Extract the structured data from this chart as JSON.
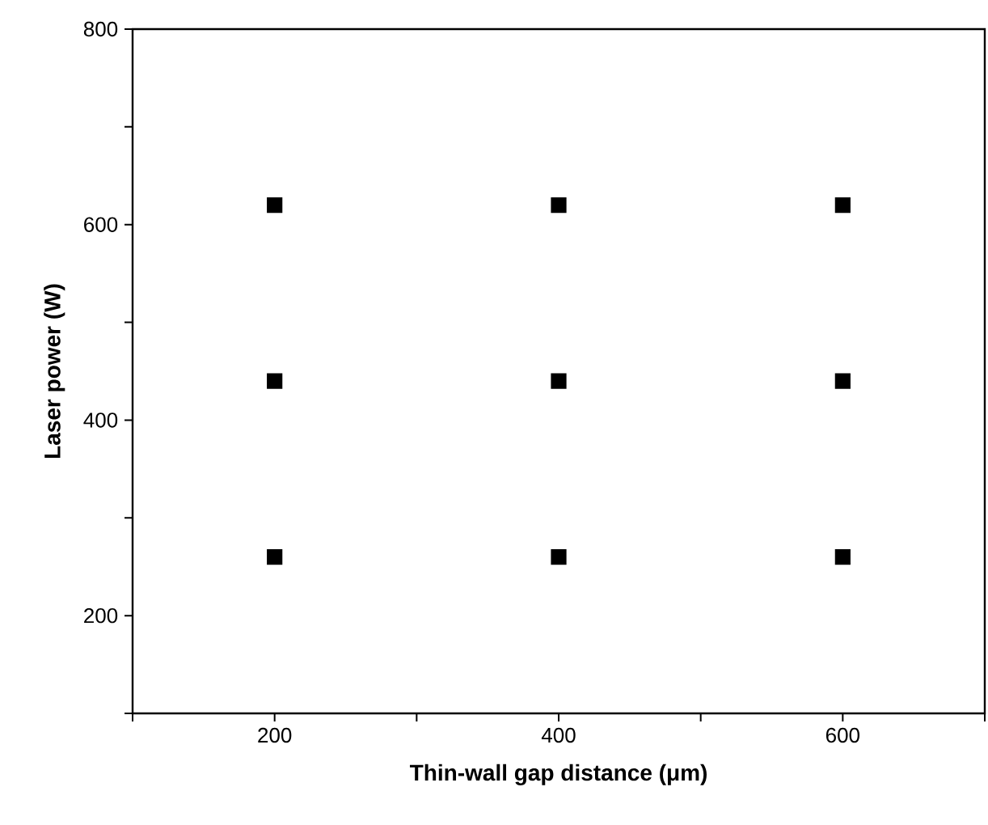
{
  "chart_data": {
    "type": "scatter",
    "xlabel": "Thin-wall gap distance (μm)",
    "ylabel": "Laser power (W)",
    "xlim": [
      100,
      700
    ],
    "ylim": [
      100,
      800
    ],
    "xticks": [
      {
        "value": 100,
        "label": null
      },
      200,
      {
        "value": 300,
        "label": null
      },
      400,
      {
        "value": 500,
        "label": null
      },
      600,
      {
        "value": 700,
        "label": null
      }
    ],
    "yticks": [
      {
        "value": 100,
        "label": null
      },
      200,
      {
        "value": 300,
        "label": null
      },
      400,
      {
        "value": 500,
        "label": null
      },
      600,
      {
        "value": 700,
        "label": null
      },
      800
    ],
    "marker": "square",
    "series": [
      {
        "color": "#000000",
        "x": [
          200,
          400,
          600
        ],
        "values": [
          620,
          620,
          620
        ]
      },
      {
        "color": "#000000",
        "x": [
          200,
          400,
          600
        ],
        "values": [
          440,
          440,
          440
        ]
      },
      {
        "color": "#000000",
        "x": [
          200,
          400,
          600
        ],
        "values": [
          260,
          260,
          260
        ]
      }
    ]
  }
}
